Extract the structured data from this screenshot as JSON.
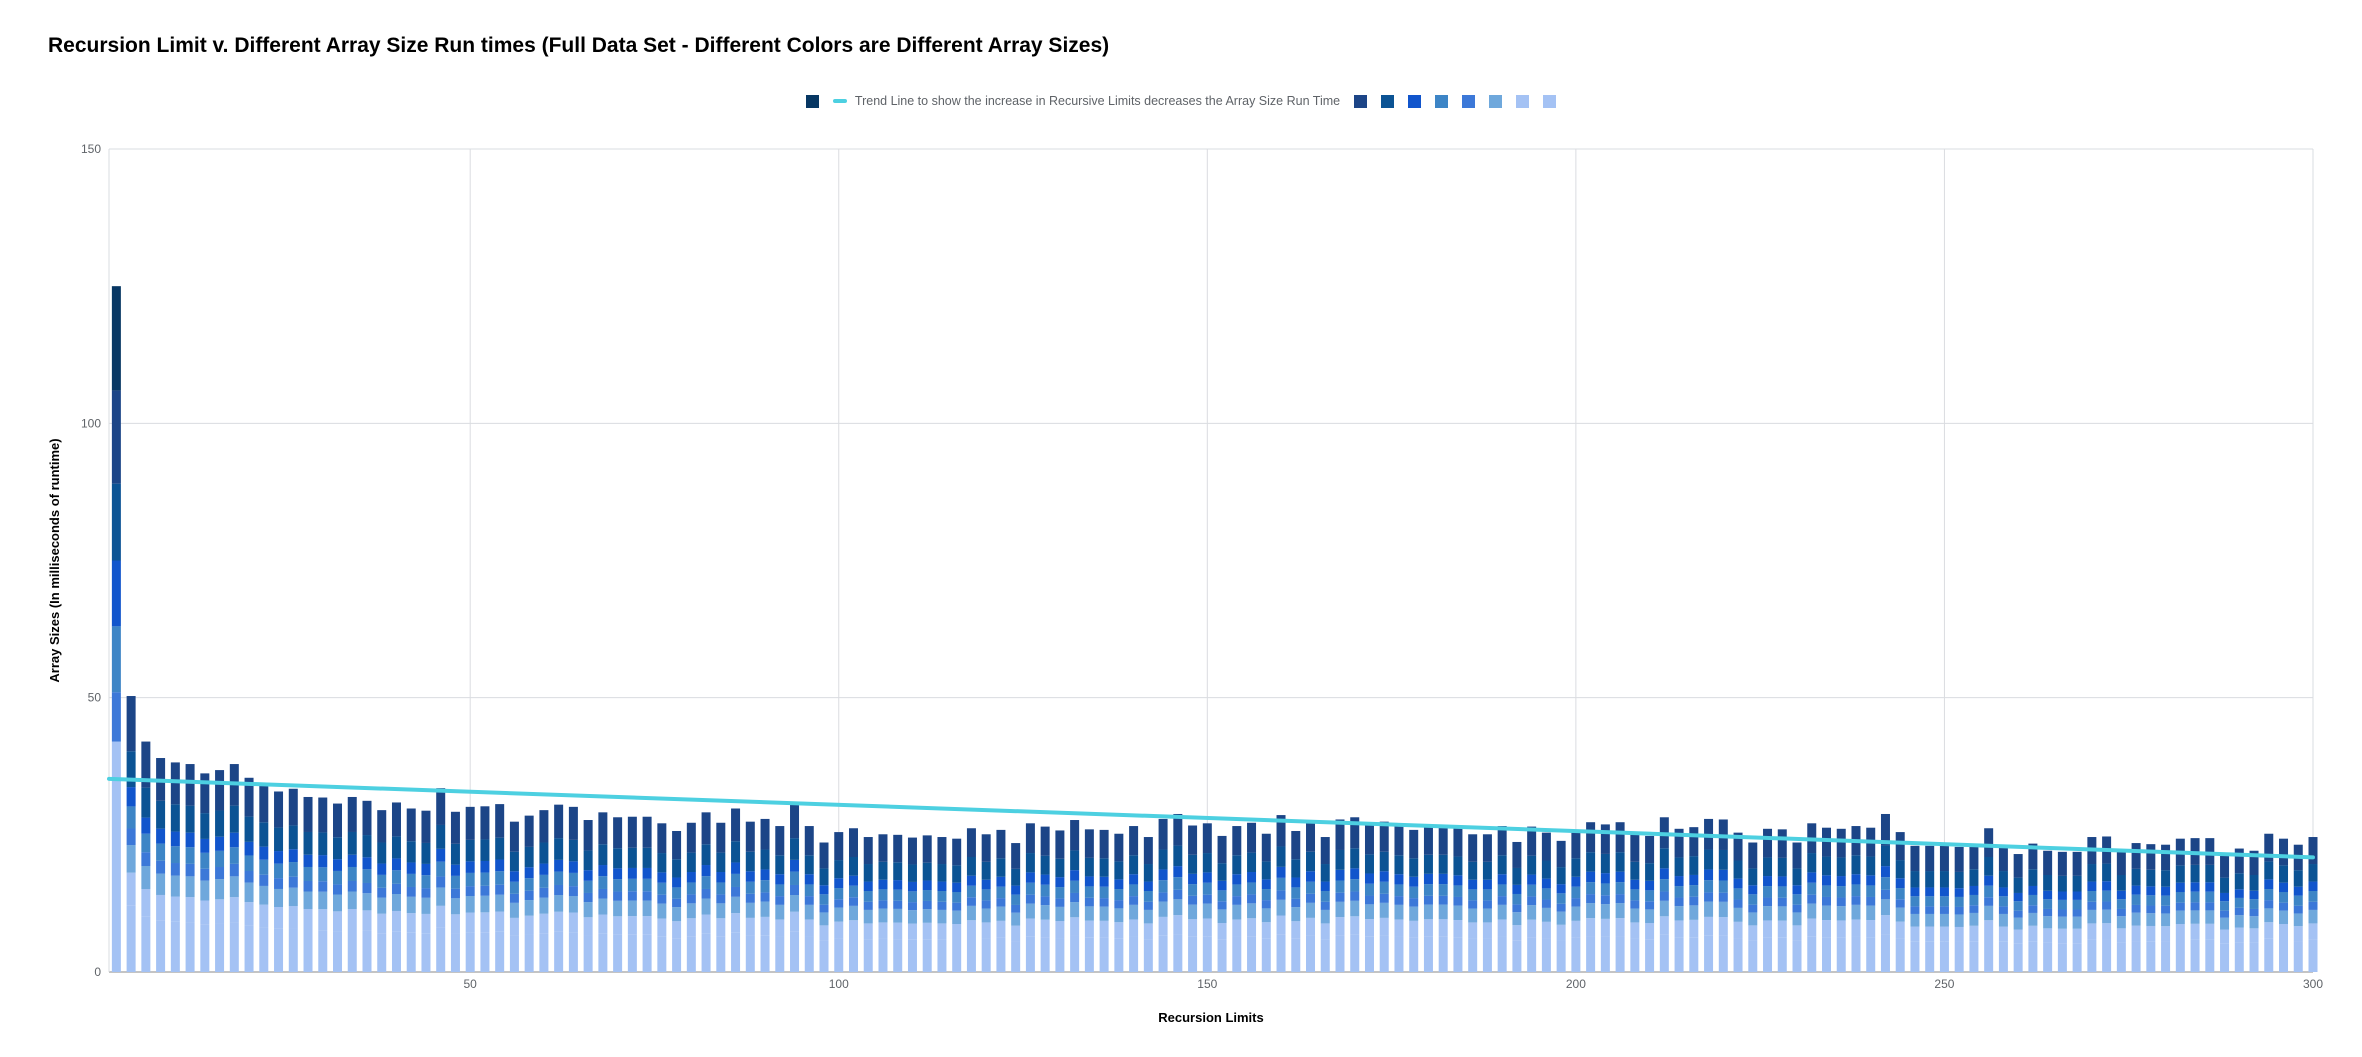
{
  "chart_data": {
    "type": "bar",
    "stacked": true,
    "title": "Recursion Limit v. Different Array Size Run times (Full Data Set - Different Colors are Different Array Sizes)",
    "xlabel": "Recursion Limits",
    "ylabel": "Array Sizes (In milliseconds of runtime)",
    "xlim": [
      1,
      300
    ],
    "ylim": [
      0,
      150
    ],
    "x_ticks": [
      "50",
      "100",
      "150",
      "200",
      "250",
      "300"
    ],
    "y_ticks": [
      "0",
      "50",
      "100",
      "150"
    ],
    "grid": true,
    "legend_position": "top",
    "bar_step": 2,
    "x_start": 2,
    "series": [
      {
        "color": "#a4c2f4"
      },
      {
        "color": "#a4c2f4"
      },
      {
        "color": "#6fa8dc"
      },
      {
        "color": "#3c78d8"
      },
      {
        "color": "#3d85c6"
      },
      {
        "color": "#1155cc"
      },
      {
        "color": "#0b5394"
      },
      {
        "color": "#1c4587"
      },
      {
        "color": "#073763"
      }
    ],
    "totals": [
      125,
      50.3,
      42,
      39,
      38.2,
      37.9,
      36.2,
      36.8,
      37.9,
      35.4,
      34.1,
      32.9,
      33.4,
      31.9,
      31.8,
      30.7,
      31.9,
      31.2,
      29.5,
      30.9,
      29.8,
      29.4,
      33.5,
      29.2,
      30.1,
      30.2,
      30.6,
      27.4,
      28.5,
      29.5,
      30.5,
      30.1,
      27.7,
      29.1,
      28.2,
      28.3,
      28.3,
      27.1,
      25.7,
      27.2,
      29.1,
      27.2,
      29.8,
      27.4,
      27.9,
      26.6,
      30.5,
      26.6,
      23.6,
      25.5,
      26.2,
      24.6,
      25.1,
      25,
      24.5,
      24.9,
      24.6,
      24.3,
      26.2,
      25.1,
      25.9,
      23.5,
      27.1,
      26.5,
      25.8,
      27.7,
      26,
      25.9,
      25.2,
      26.6,
      24.6,
      27.9,
      28.8,
      26.7,
      27.1,
      24.8,
      26.6,
      27.2,
      25.2,
      28.6,
      25.7,
      27.4,
      24.6,
      27.8,
      28.2,
      26.8,
      27.4,
      26.6,
      25.9,
      26.7,
      26.7,
      26.3,
      25.1,
      25.1,
      26.6,
      23.7,
      26.5,
      25.4,
      23.9,
      25.9,
      27.3,
      26.9,
      27.3,
      25.1,
      24.8,
      28.2,
      26.1,
      26.4,
      27.9,
      27.8,
      25.4,
      23.6,
      26.1,
      26,
      23.6,
      27.1,
      26.3,
      26.1,
      26.6,
      26.3,
      28.8,
      25.5,
      23,
      23,
      23,
      22.8,
      23.4,
      26.2,
      23,
      21.5,
      23.4,
      22.1,
      21.9,
      21.9,
      24.6,
      24.7,
      22.1,
      23.5,
      23.3,
      23.2,
      24.3,
      24.4,
      24.4,
      21.5,
      22.5,
      22.1,
      25.2,
      24.3,
      23.2,
      24.6
    ],
    "trend_line": {
      "name": "Trend Line to show the increase in Recursive Limits decreases the Array Size Run Time",
      "color": "#4dd0e1",
      "x": [
        1,
        300
      ],
      "y": [
        35.2,
        20.9
      ]
    }
  }
}
